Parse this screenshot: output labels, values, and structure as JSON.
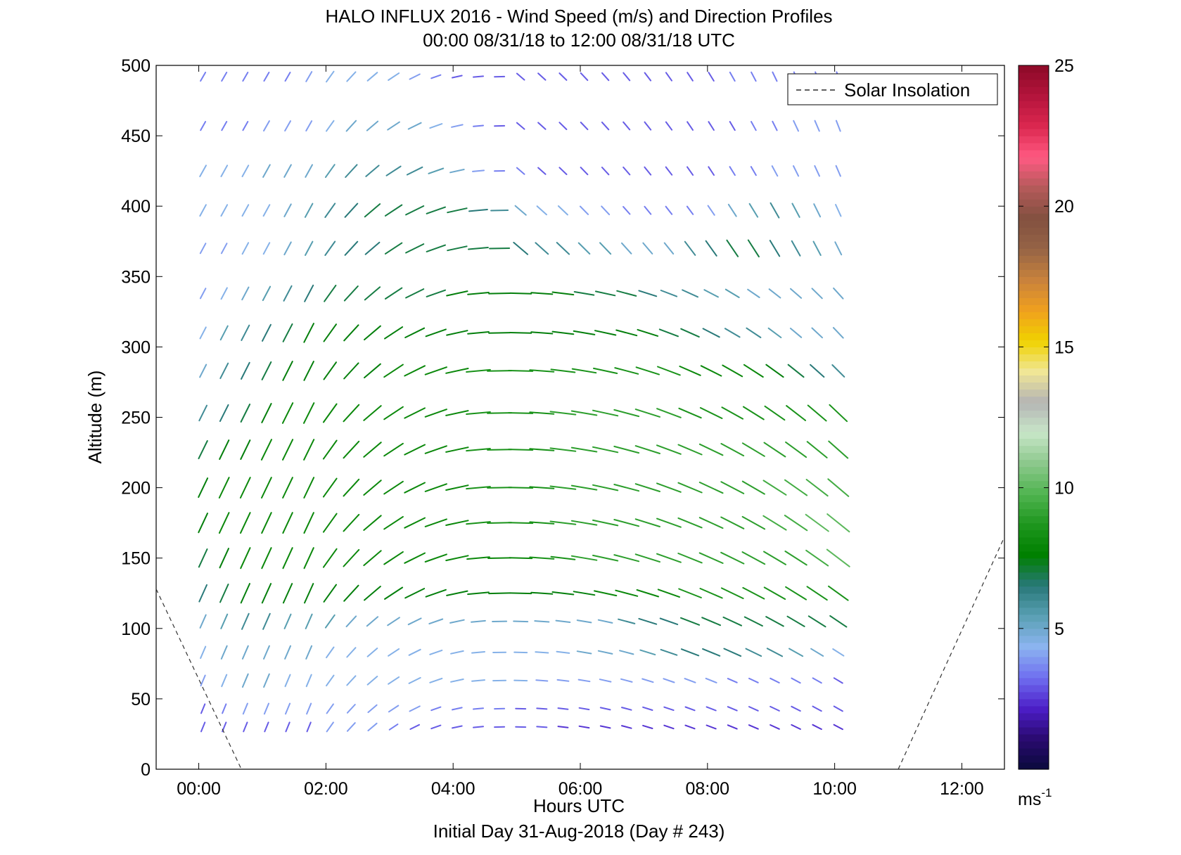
{
  "chart_data": {
    "type": "quiver",
    "title": "HALO INFLUX 2016 - Wind Speed (m/s) and Direction Profiles",
    "subtitle": "00:00 08/31/18 to 12:00 08/31/18  UTC",
    "xlabel": "Hours UTC",
    "xlabel_sub": "Initial Day 31-Aug-2018 (Day # 243)",
    "ylabel": "Altitude (m)",
    "xlim": [
      -0.67,
      12.67
    ],
    "ylim": [
      0,
      500
    ],
    "x_ticks": [
      0,
      2,
      4,
      6,
      8,
      10,
      12
    ],
    "x_tick_labels": [
      "00:00",
      "02:00",
      "04:00",
      "06:00",
      "08:00",
      "10:00",
      "12:00"
    ],
    "y_ticks": [
      0,
      50,
      100,
      150,
      200,
      250,
      300,
      350,
      400,
      450,
      500
    ],
    "y_tick_labels": [
      "0",
      "50",
      "100",
      "150",
      "200",
      "250",
      "300",
      "350",
      "400",
      "450",
      "500"
    ],
    "legend": {
      "label": "Solar Insolation",
      "placement": "top-right"
    },
    "colorbar": {
      "range": [
        0,
        25
      ],
      "ticks": [
        5,
        10,
        15,
        20,
        25
      ],
      "tick_labels": [
        "5",
        "10",
        "15",
        "20",
        "25"
      ],
      "unit": "ms",
      "unit_exp": "-1",
      "colors": [
        "#0a0a3c",
        "#2a0a70",
        "#4d1ec8",
        "#6f6ff0",
        "#8cb4f0",
        "#5aa0b4",
        "#287878",
        "#008000",
        "#1e961e",
        "#50b450",
        "#8cc88c",
        "#c8e6c8",
        "#b4b4b4",
        "#f0e696",
        "#f0d200",
        "#f0a01e",
        "#c8823c",
        "#966446",
        "#825040",
        "#b45a5a",
        "#ff5a82",
        "#dc2850",
        "#b4143c",
        "#8c0a28"
      ]
    },
    "solar_insolation": [
      {
        "x": [
          -0.67,
          0.67
        ],
        "y": [
          128,
          0
        ]
      },
      {
        "x": [
          11.0,
          12.67
        ],
        "y": [
          0,
          165
        ]
      }
    ],
    "altitudes": [
      30,
      43,
      63,
      83,
      105,
      125,
      150,
      175,
      200,
      227,
      253,
      283,
      310,
      338,
      370,
      397,
      425,
      457,
      492
    ],
    "wind": {
      "time_start": 0.067,
      "time_step": 0.333,
      "count": 31,
      "speeds": [
        [
          3,
          3,
          3,
          3,
          3,
          3,
          4,
          4,
          4,
          3.5,
          3,
          3,
          3,
          3,
          3,
          3,
          3,
          2.5,
          2.5,
          2.5,
          2.5,
          2.5,
          2.5,
          2.5,
          2.5,
          2.5,
          2.5,
          2.5,
          2.5,
          2.5,
          2.5
        ],
        [
          3,
          3.5,
          4,
          4,
          4,
          4,
          4,
          4,
          4,
          4,
          4,
          3.5,
          3.5,
          3.5,
          3.5,
          3,
          3,
          3,
          3,
          3,
          3,
          3,
          3,
          3,
          3,
          3,
          3,
          3,
          3,
          3,
          3
        ],
        [
          4,
          4.5,
          5,
          5,
          4.5,
          4.5,
          4.5,
          4.5,
          4.5,
          4.5,
          4.5,
          4.5,
          4.5,
          4.5,
          4.5,
          4.5,
          4,
          4,
          4,
          4,
          4,
          4,
          4,
          4,
          4,
          3.5,
          3.5,
          3.5,
          3.5,
          3.5,
          3
        ],
        [
          4.5,
          5,
          5,
          5,
          5,
          5,
          4.5,
          4.5,
          4.5,
          4.5,
          4.5,
          4.5,
          4.5,
          4.5,
          4.5,
          4.5,
          4.5,
          4.5,
          5,
          5,
          5,
          5.5,
          6,
          6.5,
          6.5,
          6.5,
          6,
          6,
          5.5,
          5,
          4.5
        ],
        [
          5,
          5.5,
          6,
          6,
          5.5,
          5.5,
          5.5,
          5,
          5,
          5,
          5,
          5,
          5,
          5,
          5,
          5,
          5,
          5,
          5,
          5,
          6,
          6.5,
          6.5,
          7,
          7,
          7,
          7,
          7,
          7,
          7,
          7
        ],
        [
          6.5,
          7,
          7.5,
          7.5,
          7.5,
          7.5,
          7.5,
          7.5,
          7.5,
          7.5,
          7.5,
          7.5,
          7.5,
          7.5,
          7.5,
          7.5,
          7.5,
          7.5,
          7.5,
          8,
          8,
          8,
          8,
          8.5,
          8.5,
          8.5,
          8.5,
          8.5,
          8.5,
          8.5,
          8.5
        ],
        [
          7,
          7.5,
          8,
          8,
          8,
          8,
          8,
          8,
          8,
          8,
          8,
          8,
          8,
          8,
          8,
          8,
          8.5,
          8.5,
          9,
          9,
          9,
          9,
          9,
          9,
          9,
          9,
          9,
          9,
          9,
          9.5,
          10
        ],
        [
          7.5,
          8,
          8,
          8,
          8,
          8,
          8,
          8,
          8,
          8,
          8,
          8,
          8,
          8.5,
          8.5,
          8.5,
          8.5,
          9,
          9,
          9,
          9,
          9,
          9,
          9,
          9,
          9,
          9,
          9.5,
          9.5,
          10,
          10
        ],
        [
          7.5,
          8,
          8,
          8,
          8,
          8,
          8,
          8,
          8,
          8,
          8,
          8,
          8,
          8.5,
          8.5,
          8.5,
          8.5,
          9,
          9,
          9,
          9,
          9,
          9,
          9,
          9,
          9,
          9,
          9.5,
          9.5,
          9.5,
          9.5
        ],
        [
          7,
          7.5,
          7.5,
          8,
          8,
          8,
          8,
          8,
          8,
          8,
          8,
          8,
          8,
          8.5,
          8.5,
          8.5,
          8.5,
          9,
          9,
          9,
          9,
          9,
          9,
          9,
          9,
          9,
          9,
          9,
          9,
          9,
          9
        ],
        [
          6,
          6.5,
          7,
          7.5,
          8,
          8,
          8,
          8,
          8,
          8,
          8,
          8,
          8,
          8.5,
          8.5,
          8.5,
          8.5,
          9,
          9,
          9,
          9,
          9,
          9,
          8.5,
          8.5,
          8.5,
          8.5,
          8.5,
          8.5,
          8.5,
          8.5
        ],
        [
          5,
          6,
          6.5,
          7,
          7.5,
          7.5,
          7.5,
          7.5,
          7.5,
          8,
          8,
          8,
          8,
          8.5,
          8.5,
          8.5,
          8.5,
          8.5,
          8.5,
          8.5,
          8.5,
          8.5,
          8.5,
          8,
          8,
          8,
          8,
          7.5,
          7,
          6.5,
          6
        ],
        [
          4.5,
          5.5,
          6,
          6.5,
          7,
          7.5,
          7.5,
          7.5,
          7.5,
          7.5,
          7.5,
          7.5,
          7.5,
          7.5,
          7.5,
          7.5,
          7.5,
          7.5,
          7.5,
          7.5,
          7.5,
          7.5,
          7,
          7,
          6.5,
          6,
          6,
          5.5,
          5,
          5,
          5
        ],
        [
          4,
          4.5,
          5,
          5.5,
          6,
          6.5,
          7,
          7,
          7,
          7,
          7,
          7,
          7.5,
          7.5,
          7.5,
          7.5,
          7.5,
          7.5,
          7,
          7,
          7,
          6.5,
          6,
          6,
          5.5,
          5.5,
          5,
          5,
          5,
          5,
          5
        ],
        [
          4,
          4,
          4.5,
          4.5,
          5,
          5.5,
          6,
          6.5,
          6.5,
          7,
          7,
          7,
          7,
          7,
          7,
          6.5,
          6,
          6,
          5.5,
          5.5,
          5,
          5,
          5,
          6,
          6.5,
          7,
          7,
          6.5,
          6,
          5.5,
          5
        ],
        [
          4.5,
          4.5,
          4.5,
          4.5,
          5,
          5.5,
          6,
          6.5,
          7,
          7,
          7,
          7,
          7,
          6.5,
          6,
          5,
          4.5,
          4.5,
          4,
          4,
          3.5,
          3.5,
          3.5,
          3.5,
          4,
          5,
          5.5,
          6,
          5.5,
          5,
          4.5
        ],
        [
          4.5,
          4.5,
          4.5,
          5,
          5,
          5,
          5.5,
          6,
          6,
          6,
          6,
          5.5,
          5,
          4,
          3.5,
          3.5,
          3,
          3,
          3,
          3,
          3,
          3,
          3,
          3,
          3,
          3.5,
          3.5,
          4,
          4,
          4,
          4
        ],
        [
          3.5,
          3.5,
          3.5,
          4,
          4,
          4,
          4.5,
          5,
          5,
          5,
          5,
          4.5,
          4,
          3.5,
          3,
          3,
          3,
          3,
          3,
          3,
          3,
          3,
          3,
          3,
          3,
          3,
          3.5,
          3.5,
          4,
          4,
          4
        ],
        [
          3.5,
          3.5,
          3.5,
          3.5,
          3.5,
          4,
          4.5,
          4.5,
          4.5,
          4.5,
          4,
          3.5,
          3,
          3,
          3,
          3,
          3,
          3,
          3,
          3,
          3,
          3,
          3,
          3,
          3,
          3.5,
          3.5,
          3.5,
          3.5,
          3.5,
          3.5
        ]
      ]
    }
  }
}
